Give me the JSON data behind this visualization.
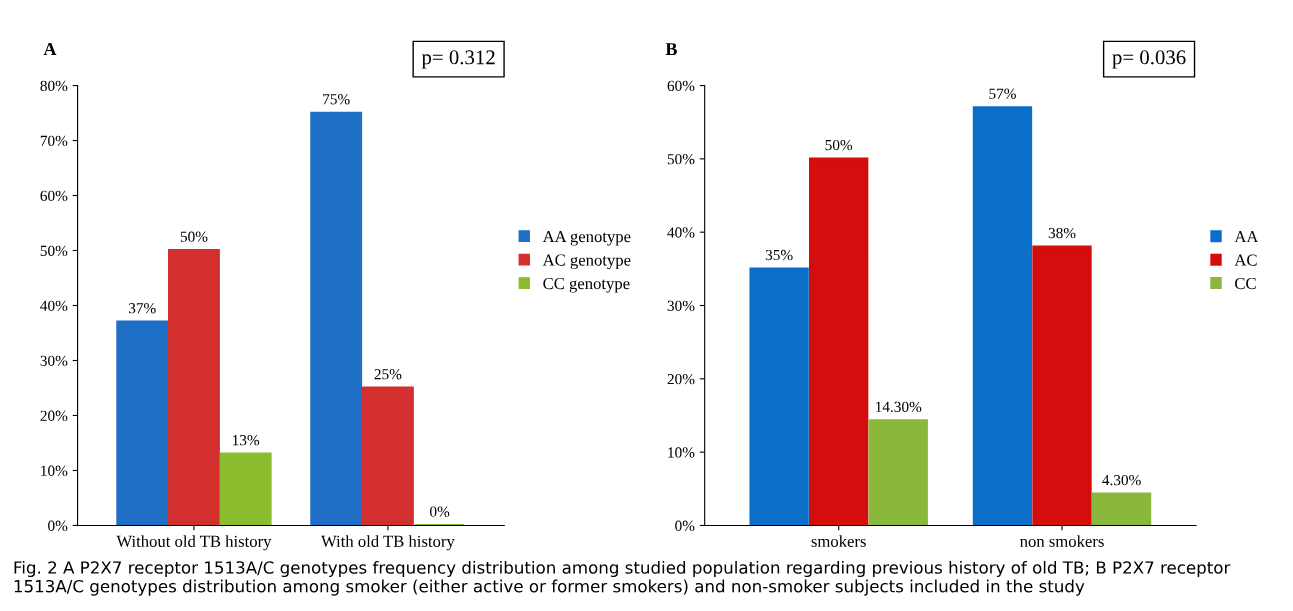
{
  "chart_data": [
    {
      "type": "bar",
      "title": "A",
      "categories": [
        "Without old TB history",
        "With old TB history"
      ],
      "series": [
        {
          "name": "AA genotype",
          "color": "#1f6fc6",
          "values": [
            37,
            75
          ],
          "value_labels": [
            "37%",
            "75%"
          ]
        },
        {
          "name": "AC genotype",
          "color": "#d32f2f",
          "values": [
            50,
            25
          ],
          "value_labels": [
            "50%",
            "25%"
          ]
        },
        {
          "name": "CC genotype",
          "color": "#8bbd2e",
          "values": [
            13,
            0
          ],
          "value_labels": [
            "13%",
            "0%"
          ]
        }
      ],
      "ylim": [
        0,
        80
      ],
      "yticks": [
        {
          "value": 0,
          "label": "0%"
        },
        {
          "value": 10,
          "label": "10%"
        },
        {
          "value": 20,
          "label": "20%"
        },
        {
          "value": 30,
          "label": "30%"
        },
        {
          "value": 40,
          "label": "40%"
        },
        {
          "value": 50,
          "label": "50%"
        },
        {
          "value": 60,
          "label": "60%"
        },
        {
          "value": 70,
          "label": "70%"
        },
        {
          "value": 80,
          "label": "80%"
        }
      ],
      "legend": "right",
      "grid": false,
      "annotations": [
        "p= 0.312",
        "Fig. 2 A P2X7 receptor 1513A/C genotypes frequency distribution among studied population regarding previous history of old TB; B P2X7 receptor 1513A/C genotypes distribution among smoker (either active or former smokers) and non-smoker subjects included in the study"
      ]
    },
    {
      "type": "bar",
      "title": "B",
      "categories": [
        "smokers",
        "non smokers"
      ],
      "series": [
        {
          "name": "AA",
          "color": "#0a6fc9",
          "values": [
            35,
            57
          ],
          "value_labels": [
            "35%",
            "57%"
          ]
        },
        {
          "name": "AC",
          "color": "#d40d0d",
          "values": [
            50,
            38
          ],
          "value_labels": [
            "50%",
            "38%"
          ]
        },
        {
          "name": "CC",
          "color": "#8ab83a",
          "values": [
            14.3,
            4.3
          ],
          "value_labels": [
            "14.30%",
            "4.30%"
          ]
        }
      ],
      "ylim": [
        0,
        60
      ],
      "yticks": [
        {
          "value": 0,
          "label": "0%"
        },
        {
          "value": 10,
          "label": "10%"
        },
        {
          "value": 20,
          "label": "20%"
        },
        {
          "value": 30,
          "label": "30%"
        },
        {
          "value": 40,
          "label": "40%"
        },
        {
          "value": 50,
          "label": "50%"
        },
        {
          "value": 60,
          "label": "60%"
        }
      ],
      "legend": "right",
      "grid": false,
      "annotations": [
        "p= 0.036"
      ]
    }
  ]
}
